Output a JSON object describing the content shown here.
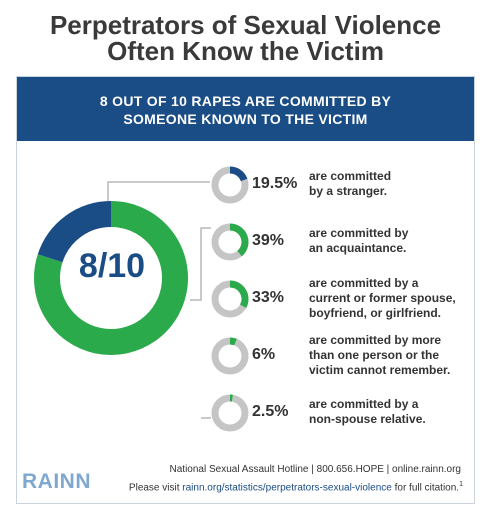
{
  "title_line1": "Perpetrators of Sexual Violence",
  "title_line2": "Often Know the Victim",
  "banner_line1": "8 OUT OF 10 RAPES ARE COMMITTED BY",
  "banner_line2": "SOMEONE KNOWN TO THE VICTIM",
  "colors": {
    "navy": "#1a4c86",
    "green": "#2aaa4a",
    "gray": "#c5c5c5"
  },
  "chart_data": {
    "type": "pie",
    "main": {
      "label": "8/10",
      "known_fraction": 0.8,
      "stranger_fraction": 0.2
    },
    "items": [
      {
        "value": 19.5,
        "label": "19.5%",
        "color": "navy",
        "lines": [
          "are committed",
          "by a stranger."
        ]
      },
      {
        "value": 39,
        "label": "39%",
        "color": "green",
        "lines": [
          "are committed by",
          "an acquaintance."
        ]
      },
      {
        "value": 33,
        "label": "33%",
        "color": "green",
        "lines": [
          "are committed by a",
          "current or former spouse,",
          "boyfriend, or girlfriend."
        ]
      },
      {
        "value": 6,
        "label": "6%",
        "color": "green",
        "lines": [
          "are committed by more",
          "than one person or the",
          "victim cannot remember."
        ]
      },
      {
        "value": 2.5,
        "label": "2.5%",
        "color": "green",
        "lines": [
          "are committed by a",
          "non-spouse relative."
        ]
      }
    ]
  },
  "footer": {
    "logo": "RAINN",
    "hotline": "National Sexual Assault Hotline | 800.656.HOPE | online.rainn.org",
    "visit": "Please visit",
    "link": "rainn.org/statistics/perpetrators-sexual-violence",
    "citation": "for full citation.",
    "sup": "1"
  }
}
